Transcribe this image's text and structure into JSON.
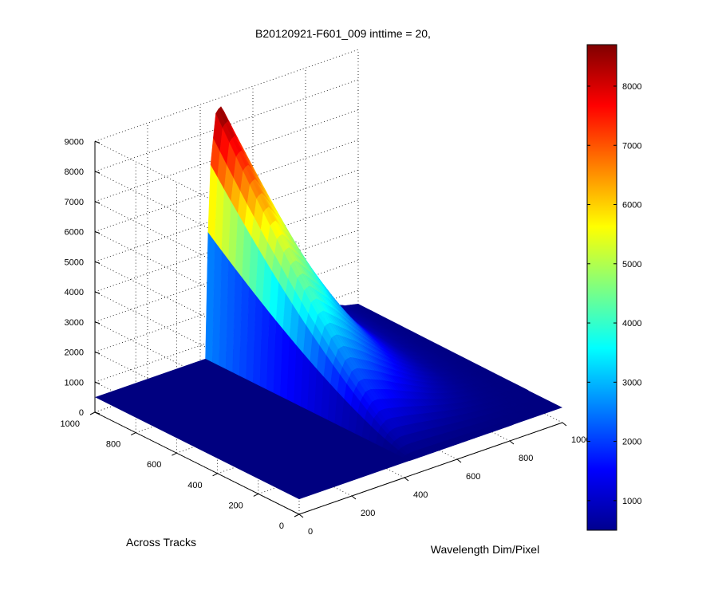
{
  "chart_data": {
    "type": "surface",
    "title": "B20120921-F601_009 inttime = 20,",
    "xlabel": "Wavelength Dim/Pixel",
    "ylabel": "Across Tracks",
    "zlabel": "",
    "xlim": [
      0,
      1000
    ],
    "ylim": [
      0,
      1000
    ],
    "zlim": [
      0,
      9000
    ],
    "x_ticks": [
      "0",
      "200",
      "400",
      "600",
      "800",
      "1000"
    ],
    "y_ticks": [
      "0",
      "200",
      "400",
      "600",
      "800",
      "1000"
    ],
    "z_ticks": [
      "0",
      "1000",
      "2000",
      "3000",
      "4000",
      "5000",
      "6000",
      "7000",
      "8000",
      "9000"
    ],
    "colormap": "jet",
    "grid": true,
    "colorbar": {
      "placement": "right",
      "range": [
        500,
        8700
      ],
      "ticks": [
        "1000",
        "2000",
        "3000",
        "4000",
        "5000",
        "6000",
        "7000",
        "8000"
      ]
    },
    "surface": {
      "description_values": {
        "peak_value": 8700,
        "peak_wavelength_pixel": 450,
        "peak_across_track": 1000,
        "baseline_value": 500,
        "signal_wavelength_range": [
          420,
          1000
        ],
        "across_track_range_of_signal": [
          0,
          1000
        ]
      },
      "ridge_profile": {
        "wavelength": [
          420,
          440,
          460,
          480,
          500,
          550,
          600,
          650,
          700,
          750,
          800,
          850,
          900,
          950,
          1000
        ],
        "value_at_across_track_1000": [
          2500,
          7000,
          8600,
          8700,
          8300,
          7300,
          6000,
          4800,
          3600,
          2600,
          1800,
          1200,
          850,
          650,
          550
        ]
      }
    }
  }
}
